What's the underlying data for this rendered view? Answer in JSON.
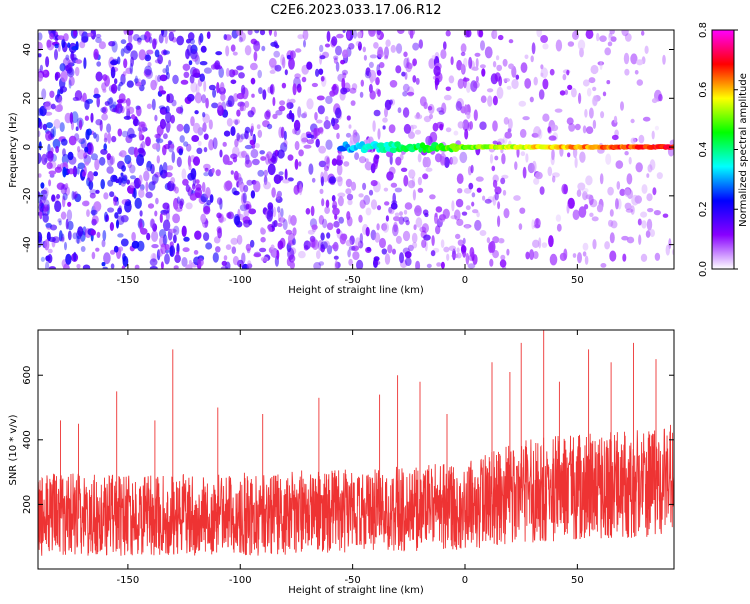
{
  "figure": {
    "title": "C2E6.2023.033.17.06.R12"
  },
  "chart_data": [
    {
      "type": "heatmap",
      "xlabel": "Height of straight line (km)",
      "ylabel": "Frequency (Hz)",
      "xlim": [
        -190,
        93
      ],
      "ylim": [
        -50,
        48
      ],
      "x_ticks": [
        -150,
        -100,
        -50,
        0,
        50
      ],
      "y_ticks": [
        -40,
        -20,
        0,
        20,
        40
      ],
      "grid": false,
      "colorbar": {
        "label": "Normalized spectral amplitude",
        "range": [
          0.0,
          0.8
        ],
        "ticks": [
          "0.0",
          "0.2",
          "0.4",
          "0.6",
          "0.8"
        ],
        "colormap": [
          "#ffffff",
          "#8800ff",
          "#0000ff",
          "#00ffff",
          "#00ff00",
          "#ffff00",
          "#ff0000",
          "#ff00ff"
        ]
      },
      "ridge": {
        "frequency": 0,
        "x_start": -55,
        "x_end": 93,
        "amplitude_start": 0.25,
        "amplitude_end": 0.7
      }
    },
    {
      "type": "line",
      "xlabel": "Height of straight line (km)",
      "ylabel": "SNR (10 * v/v)",
      "xlim": [
        -190,
        93
      ],
      "ylim": [
        0,
        740
      ],
      "x_ticks": [
        -150,
        -100,
        -50,
        0,
        50
      ],
      "y_ticks": [
        200,
        400,
        600
      ],
      "grid": false,
      "series": [
        {
          "color": "#ee3333",
          "envelope": [
            {
              "x": -190,
              "baseline": 160,
              "upper": 300,
              "lower": 40
            },
            {
              "x": -150,
              "baseline": 150,
              "upper": 290,
              "lower": 40
            },
            {
              "x": -100,
              "baseline": 150,
              "upper": 300,
              "lower": 40
            },
            {
              "x": -50,
              "baseline": 170,
              "upper": 310,
              "lower": 50
            },
            {
              "x": 0,
              "baseline": 200,
              "upper": 330,
              "lower": 60
            },
            {
              "x": 25,
              "baseline": 250,
              "upper": 400,
              "lower": 80
            },
            {
              "x": 50,
              "baseline": 260,
              "upper": 420,
              "lower": 90
            },
            {
              "x": 93,
              "baseline": 270,
              "upper": 450,
              "lower": 100
            }
          ],
          "peaks": [
            {
              "x": -180,
              "y": 460
            },
            {
              "x": -172,
              "y": 450
            },
            {
              "x": -155,
              "y": 550
            },
            {
              "x": -138,
              "y": 460
            },
            {
              "x": -130,
              "y": 680
            },
            {
              "x": -110,
              "y": 500
            },
            {
              "x": -90,
              "y": 480
            },
            {
              "x": -65,
              "y": 530
            },
            {
              "x": -38,
              "y": 540
            },
            {
              "x": -30,
              "y": 600
            },
            {
              "x": -20,
              "y": 580
            },
            {
              "x": -8,
              "y": 480
            },
            {
              "x": 12,
              "y": 640
            },
            {
              "x": 20,
              "y": 610
            },
            {
              "x": 25,
              "y": 700
            },
            {
              "x": 35,
              "y": 740
            },
            {
              "x": 42,
              "y": 580
            },
            {
              "x": 55,
              "y": 680
            },
            {
              "x": 65,
              "y": 640
            },
            {
              "x": 75,
              "y": 700
            },
            {
              "x": 85,
              "y": 650
            }
          ]
        }
      ]
    }
  ]
}
